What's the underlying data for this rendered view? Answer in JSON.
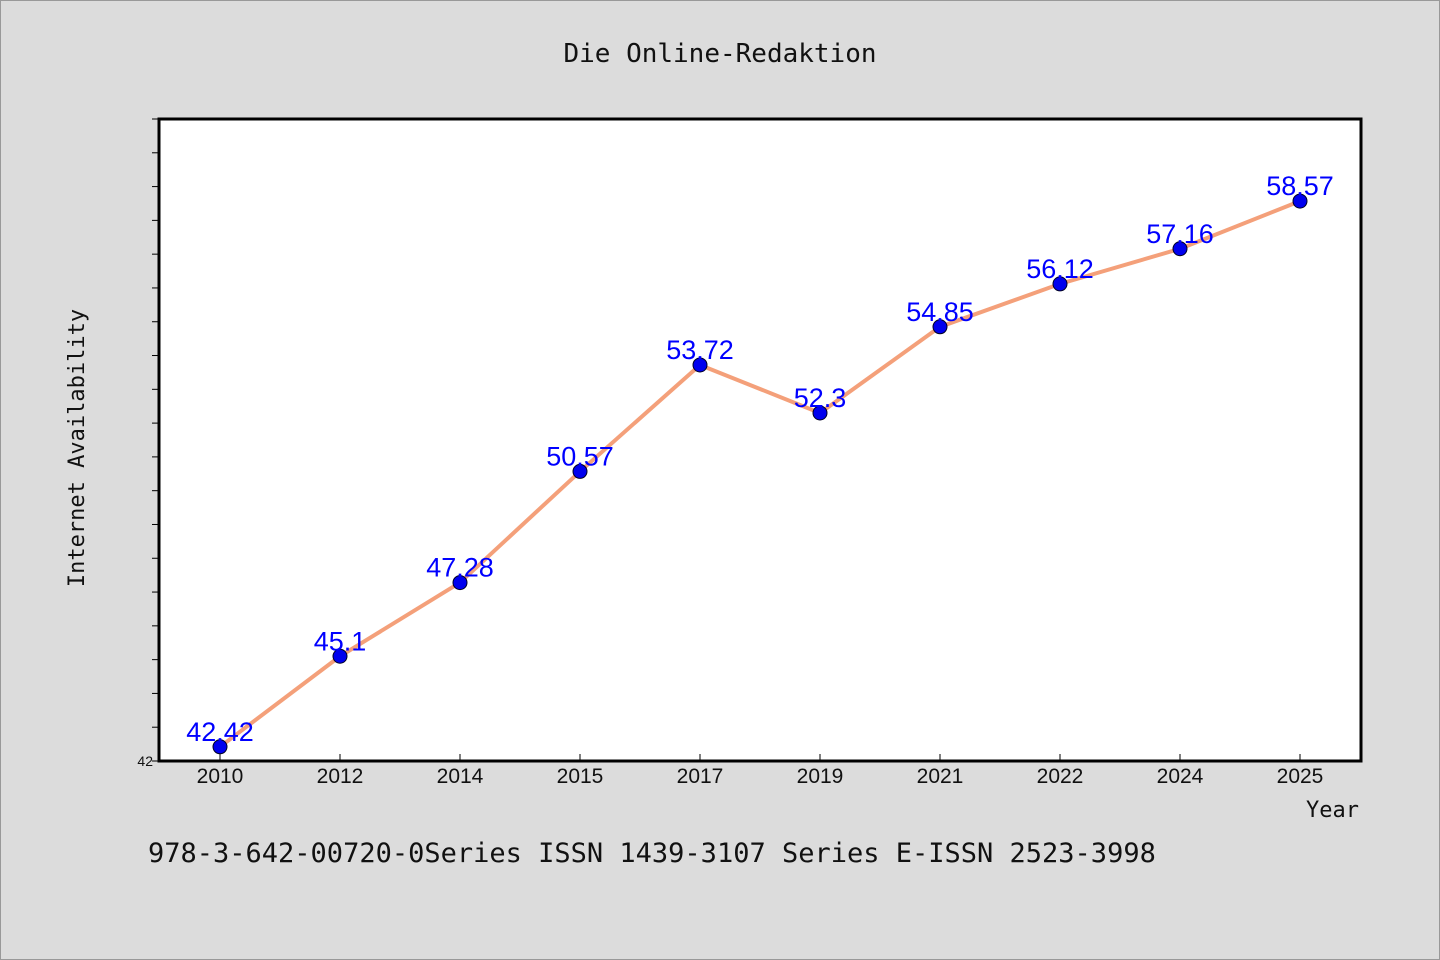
{
  "chart_data": {
    "type": "line",
    "title": "Die Online-Redaktion",
    "xlabel": "Year",
    "ylabel": "Internet Availability",
    "ylim": [
      42,
      61
    ],
    "ytick_label": "42",
    "categories": [
      "2010",
      "2012",
      "2014",
      "2015",
      "2017",
      "2019",
      "2021",
      "2022",
      "2024",
      "2025"
    ],
    "series": [
      {
        "values": [
          42.42,
          45.1,
          47.28,
          50.57,
          53.72,
          52.3,
          54.85,
          56.12,
          57.16,
          58.57
        ],
        "labels": [
          "42.42",
          "45.1",
          "47.28",
          "50.57",
          "53.72",
          "52.3",
          "54.85",
          "56.12",
          "57.16",
          "58.57"
        ],
        "line_color": "#f4a07a",
        "marker_color": "#0000ee",
        "label_color": "#0000ff"
      }
    ],
    "grid": false,
    "legend": "none"
  },
  "footer": "978-3-642-00720-0Series ISSN 1439-3107 Series E-ISSN 2523-3998"
}
